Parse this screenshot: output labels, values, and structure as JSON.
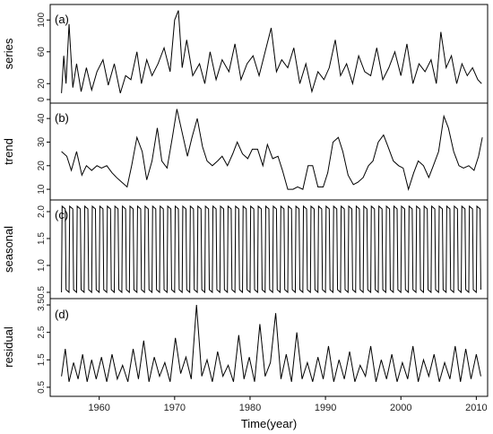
{
  "chart_data": {
    "type": "line",
    "xlabel": "Time(year)",
    "xlim": [
      1953.5,
      2011.5
    ],
    "x_ticks": [
      1960,
      1970,
      1980,
      1990,
      2000,
      2010
    ],
    "x_tick_labels": [
      "1960",
      "1970",
      "1980",
      "1990",
      "2000",
      "2010"
    ],
    "grid": false,
    "panels": [
      {
        "label": "(a)",
        "ylabel": "series",
        "ylim": [
          0,
          115
        ],
        "y_ticks": [
          0,
          20,
          60,
          100
        ],
        "y_tick_labels": [
          "0",
          "20",
          "60",
          "100"
        ],
        "series": [
          {
            "x": [
              1955.0,
              1955.3,
              1955.6,
              1956.0,
              1956.5,
              1957.0,
              1957.6,
              1958.3,
              1959.0,
              1959.7,
              1960.5,
              1961.2,
              1962.0,
              1962.8,
              1963.5,
              1964.2,
              1965.0,
              1965.6,
              1966.3,
              1967.0,
              1967.8,
              1968.6,
              1969.4,
              1970.0,
              1970.5,
              1971.0,
              1971.6,
              1972.4,
              1973.3,
              1974.0,
              1974.7,
              1975.5,
              1976.3,
              1977.2,
              1978.0,
              1978.8,
              1979.6,
              1980.4,
              1981.2,
              1982.0,
              1982.8,
              1983.5,
              1984.2,
              1985.0,
              1985.8,
              1986.6,
              1987.4,
              1988.2,
              1989.0,
              1989.8,
              1990.5,
              1991.3,
              1992.0,
              1992.8,
              1993.6,
              1994.4,
              1995.2,
              1996.0,
              1996.8,
              1997.6,
              1998.4,
              1999.2,
              2000.0,
              2000.8,
              2001.6,
              2002.4,
              2003.2,
              2004.0,
              2004.7,
              2005.3,
              2006.0,
              2006.7,
              2007.4,
              2008.1,
              2008.8,
              2009.5,
              2010.2,
              2010.7
            ],
            "y": [
              8,
              55,
              20,
              95,
              15,
              45,
              10,
              40,
              12,
              35,
              50,
              18,
              45,
              8,
              30,
              25,
              60,
              20,
              50,
              30,
              45,
              65,
              35,
              100,
              112,
              40,
              75,
              30,
              45,
              20,
              60,
              25,
              50,
              35,
              70,
              25,
              45,
              55,
              30,
              60,
              90,
              35,
              50,
              40,
              65,
              20,
              45,
              10,
              35,
              25,
              40,
              75,
              30,
              45,
              20,
              55,
              35,
              30,
              65,
              25,
              40,
              60,
              30,
              70,
              20,
              45,
              35,
              50,
              20,
              85,
              40,
              55,
              20,
              45,
              30,
              40,
              25,
              20
            ]
          }
        ]
      },
      {
        "label": "(b)",
        "ylabel": "trend",
        "ylim": [
          7,
          45
        ],
        "y_ticks": [
          10,
          20,
          30,
          40
        ],
        "y_tick_labels": [
          "10",
          "20",
          "30",
          "40"
        ],
        "series": [
          {
            "x": [
              1955.0,
              1955.7,
              1956.3,
              1957.0,
              1957.7,
              1958.3,
              1959.0,
              1959.7,
              1960.3,
              1961.0,
              1961.7,
              1962.3,
              1963.0,
              1963.7,
              1964.3,
              1965.0,
              1965.7,
              1966.3,
              1967.0,
              1967.7,
              1968.3,
              1969.0,
              1969.7,
              1970.3,
              1971.0,
              1971.7,
              1972.3,
              1973.0,
              1973.7,
              1974.3,
              1975.0,
              1975.7,
              1976.3,
              1977.0,
              1977.7,
              1978.3,
              1979.0,
              1979.7,
              1980.3,
              1981.0,
              1981.7,
              1982.3,
              1983.0,
              1983.7,
              1984.3,
              1985.0,
              1985.7,
              1986.3,
              1987.0,
              1987.7,
              1988.3,
              1989.0,
              1989.7,
              1990.3,
              1991.0,
              1991.7,
              1992.3,
              1993.0,
              1993.7,
              1994.3,
              1995.0,
              1995.7,
              1996.3,
              1997.0,
              1997.7,
              1998.3,
              1999.0,
              1999.7,
              2000.3,
              2001.0,
              2001.7,
              2002.3,
              2003.0,
              2003.7,
              2004.3,
              2005.0,
              2005.7,
              2006.3,
              2007.0,
              2007.7,
              2008.3,
              2009.0,
              2009.7,
              2010.3,
              2010.8
            ],
            "y": [
              26,
              24,
              18,
              26,
              16,
              20,
              18,
              20,
              19,
              20,
              17,
              15,
              13,
              11,
              20,
              32,
              26,
              14,
              22,
              36,
              22,
              19,
              32,
              44,
              34,
              24,
              32,
              40,
              28,
              22,
              20,
              22,
              24,
              20,
              25,
              30,
              25,
              23,
              27,
              27,
              20,
              29,
              23,
              24,
              18,
              10,
              10,
              11,
              10,
              20,
              20,
              11,
              11,
              17,
              30,
              32,
              26,
              16,
              12,
              13,
              15,
              20,
              22,
              30,
              33,
              28,
              22,
              20,
              19,
              10,
              17,
              22,
              20,
              15,
              20,
              26,
              41,
              36,
              26,
              20,
              19,
              20,
              18,
              24,
              32
            ]
          }
        ]
      },
      {
        "label": "(c)",
        "ylabel": "seasonal",
        "ylim": [
          0.45,
          2.15
        ],
        "y_ticks": [
          0.5,
          1.0,
          1.5,
          2.0
        ],
        "y_tick_labels": [
          "0.5",
          "1.0",
          "1.5",
          "2.0"
        ],
        "periodic": {
          "period_years": 1,
          "min": 0.5,
          "max": 2.1,
          "start": 1955.0,
          "end": 2010.8
        }
      },
      {
        "label": "(d)",
        "ylabel": "residual",
        "ylim": [
          0.3,
          3.6
        ],
        "y_ticks": [
          0.5,
          1.5,
          2.5,
          3.5
        ],
        "y_tick_labels": [
          "0.5",
          "1.5",
          "2.5",
          "3.5"
        ],
        "series": [
          {
            "x": [
              1955.0,
              1955.5,
              1956.0,
              1956.6,
              1957.2,
              1957.8,
              1958.4,
              1959.0,
              1959.6,
              1960.3,
              1961.0,
              1961.7,
              1962.4,
              1963.1,
              1963.8,
              1964.5,
              1965.2,
              1965.9,
              1966.6,
              1967.3,
              1968.0,
              1968.7,
              1969.4,
              1970.1,
              1970.8,
              1971.5,
              1972.2,
              1972.9,
              1973.6,
              1974.3,
              1975.0,
              1975.7,
              1976.4,
              1977.1,
              1977.8,
              1978.5,
              1979.2,
              1979.9,
              1980.6,
              1981.3,
              1982.0,
              1982.7,
              1983.4,
              1984.1,
              1984.8,
              1985.5,
              1986.2,
              1986.9,
              1987.6,
              1988.3,
              1989.0,
              1989.7,
              1990.4,
              1991.1,
              1991.8,
              1992.5,
              1993.2,
              1993.9,
              1994.6,
              1995.3,
              1996.0,
              1996.7,
              1997.4,
              1998.1,
              1998.8,
              1999.5,
              2000.2,
              2000.9,
              2001.6,
              2002.3,
              2003.0,
              2003.7,
              2004.4,
              2005.1,
              2005.8,
              2006.5,
              2007.2,
              2007.9,
              2008.6,
              2009.3,
              2010.0,
              2010.6
            ],
            "y": [
              0.9,
              1.9,
              0.7,
              1.4,
              0.8,
              1.7,
              0.7,
              1.5,
              0.8,
              1.6,
              0.7,
              1.7,
              0.8,
              1.3,
              0.7,
              1.9,
              0.8,
              2.2,
              0.7,
              1.6,
              0.9,
              1.4,
              0.7,
              2.3,
              1.0,
              1.6,
              0.8,
              3.5,
              0.9,
              1.5,
              0.7,
              1.8,
              0.9,
              1.3,
              0.7,
              2.4,
              0.8,
              1.6,
              0.7,
              2.8,
              0.9,
              1.4,
              3.2,
              0.8,
              1.7,
              0.7,
              2.5,
              0.8,
              1.4,
              0.7,
              1.6,
              0.8,
              2.0,
              0.7,
              1.5,
              0.8,
              1.8,
              0.7,
              1.3,
              0.9,
              2.0,
              0.7,
              1.5,
              0.8,
              1.7,
              0.7,
              1.4,
              0.8,
              2.0,
              0.7,
              1.5,
              0.9,
              1.7,
              0.7,
              1.4,
              0.8,
              2.0,
              0.7,
              1.9,
              0.8,
              1.7,
              0.9
            ]
          }
        ]
      }
    ]
  }
}
